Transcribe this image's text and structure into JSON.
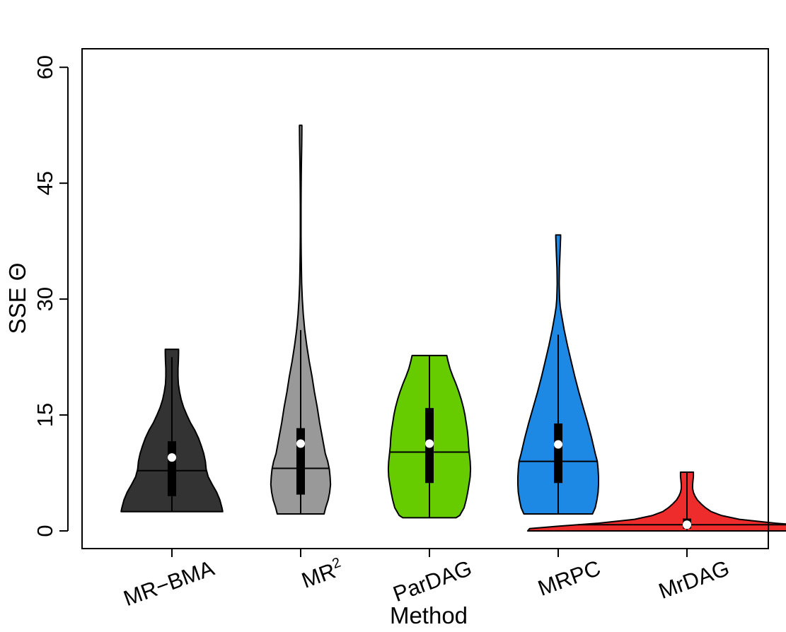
{
  "chart_data": {
    "type": "violin",
    "xlabel": "Method",
    "ylabel": "SSE Θ",
    "ylim": [
      -2.3,
      62.3
    ],
    "yticks": [
      0,
      15,
      30,
      45,
      60
    ],
    "grid": false,
    "legend": "none",
    "series": [
      {
        "name": "MR−BMA",
        "color": "#333333",
        "min": 2.5,
        "q1": 4.5,
        "median": 7.8,
        "mean": 9.5,
        "q3": 11.6,
        "whisker_high": 22.5,
        "max": 23.5,
        "density": [
          [
            2.5,
            12.6
          ],
          [
            3,
            12.4
          ],
          [
            4,
            11.9
          ],
          [
            5,
            11.1
          ],
          [
            6,
            10.0
          ],
          [
            7,
            9.0
          ],
          [
            8,
            8.5
          ],
          [
            9,
            8.3
          ],
          [
            10,
            7.9
          ],
          [
            11,
            7.3
          ],
          [
            12,
            6.6
          ],
          [
            13,
            5.7
          ],
          [
            14,
            4.6
          ],
          [
            15,
            3.7
          ],
          [
            16,
            2.9
          ],
          [
            17,
            2.3
          ],
          [
            18,
            1.9
          ],
          [
            19,
            1.6
          ],
          [
            20,
            1.5
          ],
          [
            21,
            1.5
          ],
          [
            22,
            1.6
          ],
          [
            23,
            1.65
          ],
          [
            23.5,
            1.65
          ]
        ]
      },
      {
        "name": "MR",
        "name_sup": "2",
        "color": "#999999",
        "min": 2.2,
        "q1": 4.7,
        "median": 8.1,
        "mean": 11.3,
        "q3": 13.3,
        "whisker_high": 26.0,
        "max": 52.5,
        "density": [
          [
            2.2,
            5.8
          ],
          [
            3,
            6.2
          ],
          [
            4,
            6.8
          ],
          [
            5,
            7.2
          ],
          [
            6,
            7.4
          ],
          [
            7,
            7.3
          ],
          [
            8,
            7.1
          ],
          [
            9,
            6.7
          ],
          [
            10,
            6.1
          ],
          [
            12,
            5.4
          ],
          [
            14,
            4.7
          ],
          [
            16,
            4.1
          ],
          [
            18,
            3.4
          ],
          [
            20,
            2.8
          ],
          [
            22,
            2.1
          ],
          [
            24,
            1.5
          ],
          [
            26,
            1.0
          ],
          [
            28,
            0.65
          ],
          [
            30,
            0.4
          ],
          [
            32,
            0.25
          ],
          [
            34,
            0.18
          ],
          [
            36,
            0.12
          ],
          [
            38,
            0.09
          ],
          [
            40,
            0.08
          ],
          [
            42,
            0.08
          ],
          [
            44,
            0.1
          ],
          [
            46,
            0.14
          ],
          [
            48,
            0.2
          ],
          [
            50,
            0.26
          ],
          [
            52,
            0.3
          ],
          [
            52.5,
            0.3
          ]
        ]
      },
      {
        "name": "ParDAG",
        "color": "#66CC00",
        "min": 1.7,
        "q1": 6.2,
        "median": 10.2,
        "mean": 11.3,
        "q3": 15.9,
        "whisker_high": 22.7,
        "max": 22.7,
        "density": [
          [
            1.7,
            6.6
          ],
          [
            2,
            7.5
          ],
          [
            3,
            8.6
          ],
          [
            4,
            9.1
          ],
          [
            5,
            9.5
          ],
          [
            6,
            9.8
          ],
          [
            7,
            10.1
          ],
          [
            8,
            10.2
          ],
          [
            9,
            10.1
          ],
          [
            10,
            9.9
          ],
          [
            11,
            9.7
          ],
          [
            12,
            9.6
          ],
          [
            13,
            9.4
          ],
          [
            14,
            9.1
          ],
          [
            15,
            8.8
          ],
          [
            16,
            8.4
          ],
          [
            17,
            7.9
          ],
          [
            18,
            7.3
          ],
          [
            19,
            6.6
          ],
          [
            20,
            5.8
          ],
          [
            21,
            5.1
          ],
          [
            22,
            4.6
          ],
          [
            22.7,
            4.3
          ]
        ]
      },
      {
        "name": "MRPC",
        "color": "#1E88E5",
        "min": 2.2,
        "q1": 6.2,
        "median": 9.0,
        "mean": 11.2,
        "q3": 13.9,
        "whisker_high": 25.4,
        "max": 38.3,
        "density": [
          [
            2.2,
            8.5
          ],
          [
            3,
            9.2
          ],
          [
            4,
            9.6
          ],
          [
            5,
            9.9
          ],
          [
            6,
            10.0
          ],
          [
            7,
            10.0
          ],
          [
            8,
            9.9
          ],
          [
            9,
            9.7
          ],
          [
            10,
            9.2
          ],
          [
            12,
            8.3
          ],
          [
            14,
            7.3
          ],
          [
            16,
            6.2
          ],
          [
            18,
            5.1
          ],
          [
            20,
            4.1
          ],
          [
            22,
            3.2
          ],
          [
            24,
            2.3
          ],
          [
            26,
            1.5
          ],
          [
            28,
            0.8
          ],
          [
            29,
            0.5
          ],
          [
            30,
            0.35
          ],
          [
            32,
            0.25
          ],
          [
            34,
            0.3
          ],
          [
            36,
            0.45
          ],
          [
            38,
            0.6
          ],
          [
            38.3,
            0.6
          ]
        ]
      },
      {
        "name": "MrDAG",
        "color": "#EE2C2C",
        "min": 0.0,
        "q1": 0.3,
        "median": 0.8,
        "mean": 0.8,
        "q3": 1.6,
        "whisker_high": 7.5,
        "max": 7.6,
        "density": [
          [
            0,
            39.5
          ],
          [
            0.3,
            39.0
          ],
          [
            0.6,
            32
          ],
          [
            1.0,
            22
          ],
          [
            1.5,
            13
          ],
          [
            2,
            8.5
          ],
          [
            2.5,
            6
          ],
          [
            3,
            4.6
          ],
          [
            3.5,
            3.5
          ],
          [
            4,
            2.6
          ],
          [
            4.5,
            2.0
          ],
          [
            5,
            1.6
          ],
          [
            5.5,
            1.4
          ],
          [
            6,
            1.4
          ],
          [
            6.5,
            1.5
          ],
          [
            7,
            1.6
          ],
          [
            7.6,
            1.6
          ]
        ]
      }
    ]
  }
}
